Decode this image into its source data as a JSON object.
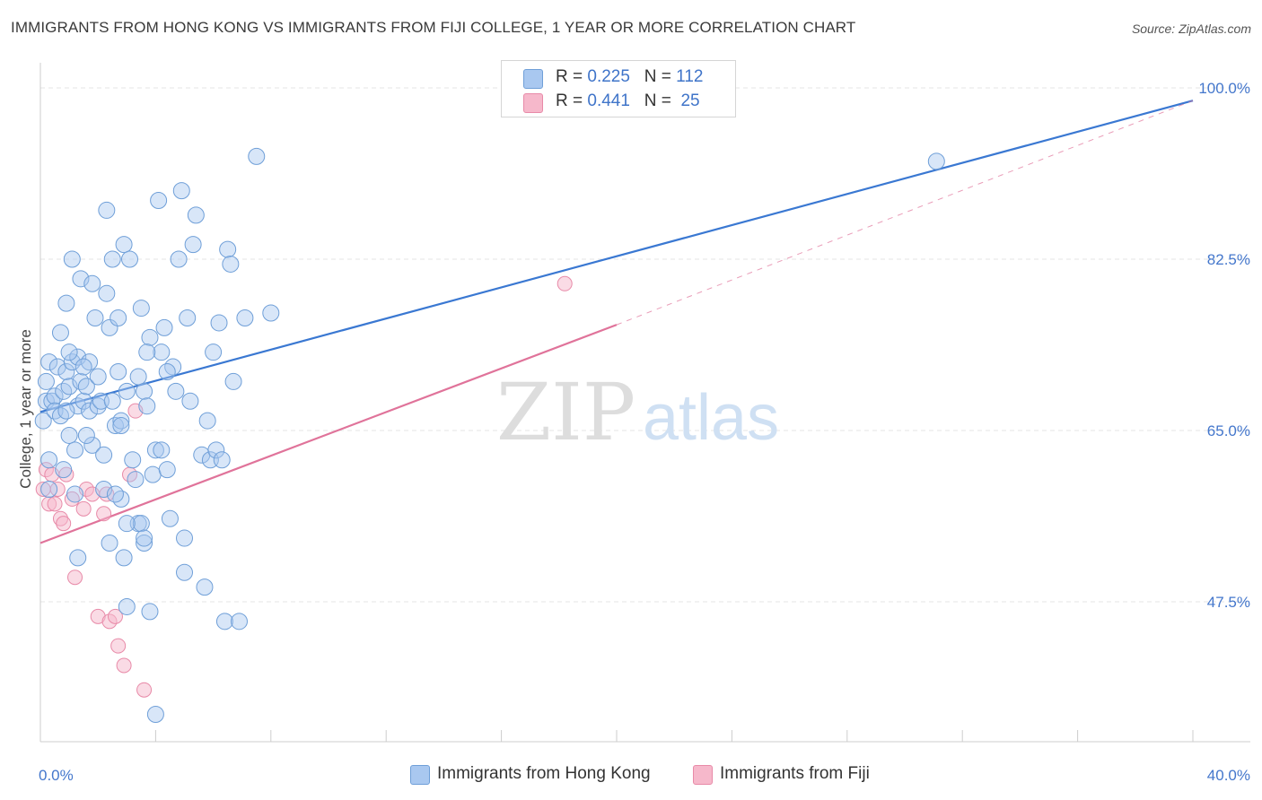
{
  "title": "IMMIGRANTS FROM HONG KONG VS IMMIGRANTS FROM FIJI COLLEGE, 1 YEAR OR MORE CORRELATION CHART",
  "source": "Source: ZipAtlas.com",
  "watermark": {
    "zip": "ZIP",
    "atlas": "atlas"
  },
  "legend": {
    "rows": [
      {
        "r_label": "R =",
        "r_value": "0.225",
        "n_label": "N =",
        "n_value": "112",
        "color": "#a9c8f0"
      },
      {
        "r_label": "R =",
        "r_value": "0.441",
        "n_label": "N =",
        "n_value": "25",
        "color": "#f6b8cb"
      }
    ]
  },
  "bottom_legend": {
    "hk": {
      "label": "Immigrants from Hong Kong",
      "color": "#a9c8f0"
    },
    "fiji": {
      "label": "Immigrants from Fiji",
      "color": "#f6b8cb"
    }
  },
  "chart_data": {
    "type": "scatter",
    "title": "IMMIGRANTS FROM HONG KONG VS IMMIGRANTS FROM FIJI COLLEGE, 1 YEAR OR MORE CORRELATION CHART",
    "xlabel": "",
    "ylabel": "College, 1 year or more",
    "x_unit": "%",
    "y_unit": "%",
    "xlim": [
      0,
      40
    ],
    "ylim": [
      30,
      102
    ],
    "x_tick_labels": [
      "0.0%",
      "40.0%"
    ],
    "y_ticks": [
      47.5,
      65.0,
      82.5,
      100.0
    ],
    "y_tick_labels": [
      "47.5%",
      "65.0%",
      "82.5%",
      "100.0%"
    ],
    "grid": true,
    "legend_position": "top-center",
    "colors": {
      "hk_fill": "#a9c8f0",
      "hk_stroke": "#6f9fd8",
      "hk_line": "#3a78d2",
      "fiji_fill": "#f6b8cb",
      "fiji_stroke": "#e88aa8",
      "fiji_line": "#e0739a"
    },
    "series": [
      {
        "name": "Immigrants from Hong Kong",
        "r": 0.225,
        "n": 112,
        "trend": {
          "x": [
            0,
            40
          ],
          "y": [
            66.9,
            98.7
          ]
        },
        "points": [
          [
            0.1,
            66.0
          ],
          [
            0.2,
            68.0
          ],
          [
            0.2,
            70.0
          ],
          [
            0.3,
            72.0
          ],
          [
            0.3,
            62.0
          ],
          [
            0.3,
            59.0
          ],
          [
            0.4,
            68.0
          ],
          [
            0.5,
            68.5
          ],
          [
            0.5,
            67.0
          ],
          [
            0.6,
            71.5
          ],
          [
            0.7,
            75.0
          ],
          [
            0.7,
            66.5
          ],
          [
            0.8,
            69.0
          ],
          [
            0.8,
            61.0
          ],
          [
            0.9,
            78.0
          ],
          [
            0.9,
            71.0
          ],
          [
            1.0,
            69.5
          ],
          [
            1.0,
            64.5
          ],
          [
            1.1,
            82.5
          ],
          [
            1.1,
            72.0
          ],
          [
            1.2,
            63.0
          ],
          [
            1.2,
            58.5
          ],
          [
            1.3,
            72.5
          ],
          [
            1.3,
            67.5
          ],
          [
            1.3,
            52.0
          ],
          [
            1.4,
            70.0
          ],
          [
            1.4,
            80.5
          ],
          [
            1.5,
            68.0
          ],
          [
            1.6,
            69.5
          ],
          [
            1.7,
            72.0
          ],
          [
            1.7,
            67.0
          ],
          [
            1.8,
            80.0
          ],
          [
            1.8,
            63.5
          ],
          [
            1.9,
            76.5
          ],
          [
            2.0,
            67.5
          ],
          [
            2.1,
            68.0
          ],
          [
            2.2,
            62.5
          ],
          [
            2.2,
            59.0
          ],
          [
            2.3,
            87.5
          ],
          [
            2.3,
            79.0
          ],
          [
            2.4,
            75.5
          ],
          [
            2.4,
            53.5
          ],
          [
            2.5,
            82.5
          ],
          [
            2.5,
            68.0
          ],
          [
            2.6,
            65.5
          ],
          [
            2.7,
            76.5
          ],
          [
            2.7,
            71.0
          ],
          [
            2.8,
            66.0
          ],
          [
            2.8,
            58.0
          ],
          [
            2.9,
            84.0
          ],
          [
            2.9,
            52.0
          ],
          [
            3.0,
            69.0
          ],
          [
            3.0,
            47.0
          ],
          [
            3.1,
            82.5
          ],
          [
            3.2,
            62.0
          ],
          [
            3.3,
            60.0
          ],
          [
            3.4,
            70.5
          ],
          [
            3.4,
            55.5
          ],
          [
            3.5,
            77.5
          ],
          [
            3.5,
            55.5
          ],
          [
            3.6,
            69.0
          ],
          [
            3.6,
            53.5
          ],
          [
            3.7,
            67.5
          ],
          [
            3.8,
            74.5
          ],
          [
            3.8,
            46.5
          ],
          [
            3.9,
            60.5
          ],
          [
            4.0,
            36.0
          ],
          [
            4.0,
            63.0
          ],
          [
            4.1,
            88.5
          ],
          [
            4.2,
            73.0
          ],
          [
            4.2,
            63.0
          ],
          [
            4.3,
            75.5
          ],
          [
            4.4,
            61.0
          ],
          [
            4.5,
            56.0
          ],
          [
            4.6,
            71.5
          ],
          [
            4.7,
            69.0
          ],
          [
            4.8,
            82.5
          ],
          [
            4.9,
            89.5
          ],
          [
            5.0,
            50.5
          ],
          [
            5.1,
            76.5
          ],
          [
            5.2,
            68.0
          ],
          [
            5.3,
            84.0
          ],
          [
            5.4,
            87.0
          ],
          [
            5.6,
            62.5
          ],
          [
            5.7,
            49.0
          ],
          [
            5.8,
            66.0
          ],
          [
            5.9,
            62.0
          ],
          [
            6.0,
            73.0
          ],
          [
            6.1,
            63.0
          ],
          [
            6.2,
            76.0
          ],
          [
            6.3,
            62.0
          ],
          [
            6.4,
            45.5
          ],
          [
            6.5,
            83.5
          ],
          [
            6.6,
            82.0
          ],
          [
            6.7,
            70.0
          ],
          [
            6.9,
            45.5
          ],
          [
            7.1,
            76.5
          ],
          [
            7.5,
            93.0
          ],
          [
            8.0,
            77.0
          ],
          [
            3.6,
            54.0
          ],
          [
            3.0,
            55.5
          ],
          [
            2.6,
            58.5
          ],
          [
            2.0,
            70.5
          ],
          [
            1.6,
            64.5
          ],
          [
            1.0,
            73.0
          ],
          [
            4.4,
            71.0
          ],
          [
            5.0,
            54.0
          ],
          [
            2.8,
            65.5
          ],
          [
            0.9,
            67.0
          ],
          [
            1.5,
            71.5
          ],
          [
            3.7,
            73.0
          ],
          [
            31.1,
            92.5
          ]
        ]
      },
      {
        "name": "Immigrants from Fiji",
        "r": 0.441,
        "n": 25,
        "trend": {
          "x": [
            0,
            20
          ],
          "y": [
            53.5,
            75.8
          ]
        },
        "trend_extended": {
          "x": [
            20,
            40
          ],
          "y": [
            75.8,
            98.7
          ]
        },
        "points": [
          [
            0.1,
            59.0
          ],
          [
            0.2,
            61.0
          ],
          [
            0.3,
            57.5
          ],
          [
            0.4,
            60.5
          ],
          [
            0.5,
            57.5
          ],
          [
            0.6,
            59.0
          ],
          [
            0.7,
            56.0
          ],
          [
            0.8,
            55.5
          ],
          [
            0.9,
            60.5
          ],
          [
            1.1,
            58.0
          ],
          [
            1.2,
            50.0
          ],
          [
            1.5,
            57.0
          ],
          [
            1.6,
            59.0
          ],
          [
            1.8,
            58.5
          ],
          [
            2.0,
            46.0
          ],
          [
            2.2,
            56.5
          ],
          [
            2.3,
            58.5
          ],
          [
            2.4,
            45.5
          ],
          [
            2.6,
            46.0
          ],
          [
            2.7,
            43.0
          ],
          [
            2.9,
            41.0
          ],
          [
            3.1,
            60.5
          ],
          [
            3.3,
            67.0
          ],
          [
            3.6,
            38.5
          ],
          [
            18.2,
            80.0
          ]
        ]
      }
    ]
  }
}
